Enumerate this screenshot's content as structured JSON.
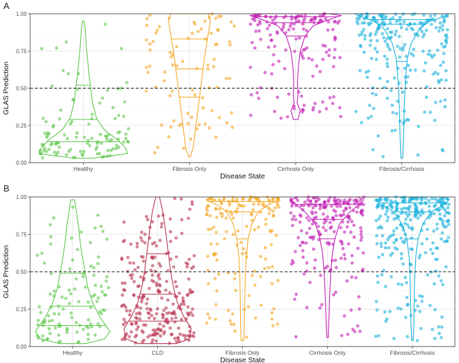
{
  "chart_data": [
    {
      "panel": "A",
      "type": "scatter",
      "title": "",
      "xlabel": "Disease State",
      "ylabel": "GLAS Prediction",
      "categories": [
        "Healthy",
        "Fibrosis Only",
        "Cirrhosis Only",
        "Fibrosis/Cirrhosis"
      ],
      "colors": [
        "#5DC64A",
        "#F5A623",
        "#C21CB4",
        "#17B1DC"
      ],
      "ylim": [
        0,
        1
      ],
      "yticks": [
        "0.00",
        "0.25",
        "0.50",
        "0.75",
        "1.00"
      ],
      "threshold": 0.5,
      "quantiles": [
        [
          0.14,
          0.29,
          0.52
        ],
        [
          0.44,
          0.63,
          0.83
        ],
        [
          0.85,
          0.94,
          0.98
        ],
        [
          0.68,
          0.93,
          0.96
        ]
      ],
      "violins": [
        [
          [
            0.03,
            0.2
          ],
          [
            0.06,
            0.95
          ],
          [
            0.1,
            0.9
          ],
          [
            0.15,
            0.75
          ],
          [
            0.22,
            0.45
          ],
          [
            0.3,
            0.28
          ],
          [
            0.4,
            0.2
          ],
          [
            0.5,
            0.16
          ],
          [
            0.6,
            0.12
          ],
          [
            0.7,
            0.09
          ],
          [
            0.8,
            0.06
          ],
          [
            0.9,
            0.04
          ],
          [
            0.95,
            0.02
          ]
        ],
        [
          [
            0.04,
            0.02
          ],
          [
            0.1,
            0.08
          ],
          [
            0.2,
            0.12
          ],
          [
            0.3,
            0.16
          ],
          [
            0.4,
            0.2
          ],
          [
            0.5,
            0.24
          ],
          [
            0.6,
            0.28
          ],
          [
            0.7,
            0.32
          ],
          [
            0.8,
            0.37
          ],
          [
            0.9,
            0.42
          ],
          [
            0.95,
            0.45
          ],
          [
            1.0,
            0.4
          ]
        ],
        [
          [
            0.29,
            0.05
          ],
          [
            0.35,
            0.1
          ],
          [
            0.4,
            0.03
          ],
          [
            0.45,
            0.05
          ],
          [
            0.55,
            0.04
          ],
          [
            0.65,
            0.06
          ],
          [
            0.75,
            0.1
          ],
          [
            0.85,
            0.2
          ],
          [
            0.92,
            0.38
          ],
          [
            0.97,
            0.8
          ],
          [
            0.99,
            1.0
          ],
          [
            1.0,
            0.7
          ]
        ],
        [
          [
            0.03,
            0.02
          ],
          [
            0.2,
            0.04
          ],
          [
            0.35,
            0.05
          ],
          [
            0.5,
            0.07
          ],
          [
            0.6,
            0.09
          ],
          [
            0.7,
            0.12
          ],
          [
            0.8,
            0.2
          ],
          [
            0.9,
            0.38
          ],
          [
            0.95,
            0.6
          ],
          [
            0.98,
            0.9
          ],
          [
            1.0,
            1.0
          ]
        ]
      ]
    },
    {
      "panel": "B",
      "type": "scatter",
      "title": "",
      "xlabel": "Disease State",
      "ylabel": "GLAS Prediction",
      "categories": [
        "Healthy",
        "CLD",
        "Fibrosis Only",
        "Cirrhosis Only",
        "Fibrosis/Cirrhosis"
      ],
      "colors": [
        "#5DC64A",
        "#B8324E",
        "#F5A623",
        "#C21CB4",
        "#17B1DC"
      ],
      "ylim": [
        0,
        1
      ],
      "yticks": [
        "0.00",
        "0.25",
        "0.50",
        "0.75",
        "1.00"
      ],
      "threshold": 0.5,
      "quantiles": [
        [
          0.14,
          0.27,
          0.49
        ],
        [
          0.17,
          0.35,
          0.62
        ],
        [
          0.72,
          0.9,
          0.97
        ],
        [
          0.72,
          0.85,
          0.95
        ],
        [
          0.72,
          0.9,
          0.96
        ]
      ],
      "violins": [
        [
          [
            0.02,
            0.35
          ],
          [
            0.05,
            0.85
          ],
          [
            0.1,
            1.0
          ],
          [
            0.2,
            0.72
          ],
          [
            0.3,
            0.52
          ],
          [
            0.4,
            0.4
          ],
          [
            0.5,
            0.33
          ],
          [
            0.6,
            0.26
          ],
          [
            0.7,
            0.2
          ],
          [
            0.8,
            0.16
          ],
          [
            0.9,
            0.1
          ],
          [
            0.98,
            0.05
          ]
        ],
        [
          [
            0.02,
            0.5
          ],
          [
            0.05,
            0.85
          ],
          [
            0.12,
            0.9
          ],
          [
            0.2,
            0.7
          ],
          [
            0.3,
            0.52
          ],
          [
            0.4,
            0.42
          ],
          [
            0.5,
            0.35
          ],
          [
            0.6,
            0.3
          ],
          [
            0.7,
            0.25
          ],
          [
            0.8,
            0.2
          ],
          [
            0.9,
            0.14
          ],
          [
            1.0,
            0.05
          ]
        ],
        [
          [
            0.04,
            0.04
          ],
          [
            0.15,
            0.05
          ],
          [
            0.3,
            0.06
          ],
          [
            0.45,
            0.07
          ],
          [
            0.6,
            0.1
          ],
          [
            0.72,
            0.15
          ],
          [
            0.82,
            0.25
          ],
          [
            0.9,
            0.42
          ],
          [
            0.95,
            0.7
          ],
          [
            0.98,
            1.0
          ],
          [
            1.0,
            0.8
          ]
        ],
        [
          [
            0.06,
            0.02
          ],
          [
            0.2,
            0.04
          ],
          [
            0.35,
            0.06
          ],
          [
            0.5,
            0.09
          ],
          [
            0.62,
            0.13
          ],
          [
            0.72,
            0.2
          ],
          [
            0.82,
            0.32
          ],
          [
            0.9,
            0.6
          ],
          [
            0.95,
            0.85
          ],
          [
            0.98,
            1.0
          ],
          [
            1.0,
            0.8
          ]
        ],
        [
          [
            0.04,
            0.02
          ],
          [
            0.15,
            0.04
          ],
          [
            0.3,
            0.05
          ],
          [
            0.45,
            0.06
          ],
          [
            0.6,
            0.09
          ],
          [
            0.72,
            0.15
          ],
          [
            0.82,
            0.28
          ],
          [
            0.9,
            0.5
          ],
          [
            0.95,
            0.85
          ],
          [
            0.98,
            1.0
          ],
          [
            1.0,
            0.8
          ]
        ]
      ]
    }
  ]
}
